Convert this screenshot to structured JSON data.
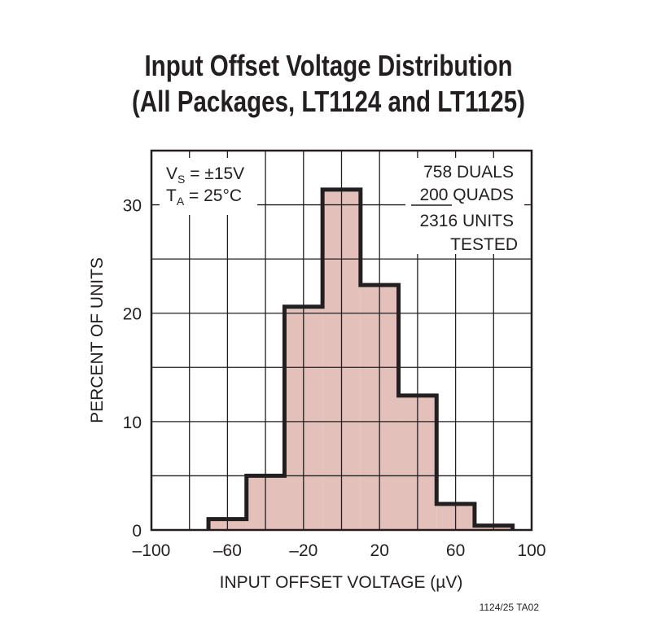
{
  "chart_data": {
    "type": "bar",
    "title_line1": "Input Offset Voltage Distribution",
    "title_line2": "(All Packages, LT1124 and LT1125)",
    "xlabel": "INPUT OFFSET VOLTAGE (µV)",
    "ylabel": "PERCENT OF UNITS",
    "xlim": [
      -100,
      100
    ],
    "ylim": [
      0,
      35
    ],
    "x_ticks": [
      -100,
      -60,
      -20,
      20,
      60,
      100
    ],
    "x_tick_labels": [
      "–100",
      "–60",
      "–20",
      "20",
      "60",
      "100"
    ],
    "y_ticks": [
      0,
      10,
      20,
      30
    ],
    "y_tick_labels": [
      "0",
      "10",
      "20",
      "30"
    ],
    "grid": true,
    "bins": [
      [
        -70,
        -50
      ],
      [
        -50,
        -30
      ],
      [
        -30,
        -10
      ],
      [
        -10,
        10
      ],
      [
        10,
        30
      ],
      [
        30,
        50
      ],
      [
        50,
        70
      ],
      [
        70,
        90
      ]
    ],
    "values": [
      1.0,
      5.0,
      20.6,
      31.4,
      22.6,
      12.4,
      2.4,
      0.4
    ],
    "fill_color": "#e3c0ba",
    "stroke_color": "#231f20",
    "annotations": {
      "conditions": [
        {
          "main": "V",
          "sub": "S",
          "rest": " = ±15V"
        },
        {
          "main": "T",
          "sub": "A",
          "rest": " = 25°C"
        }
      ],
      "counts": [
        "758 DUALS",
        "200 QUADS",
        "2316 UNITS",
        "TESTED"
      ]
    },
    "figure_id": "1124/25 TA02"
  }
}
